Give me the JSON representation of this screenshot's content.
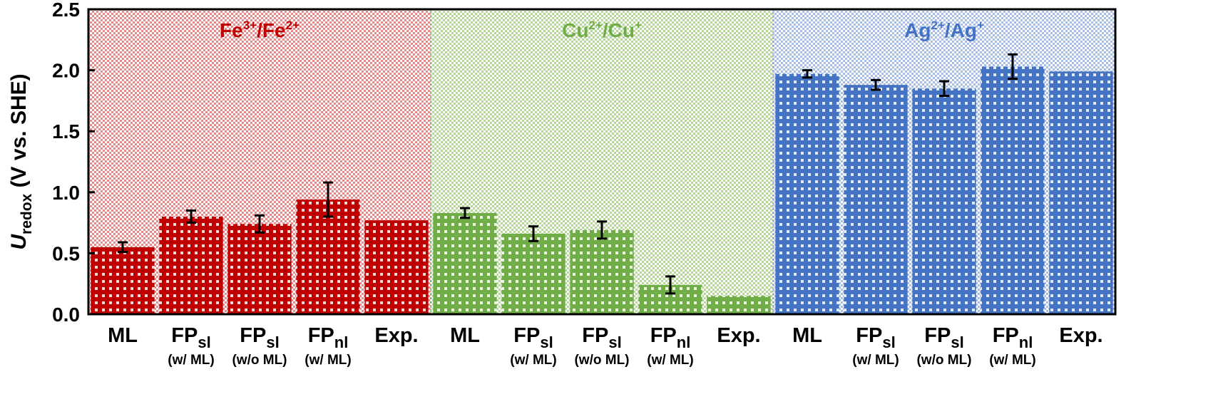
{
  "chart_data": {
    "type": "bar",
    "ylabel": {
      "main": "U",
      "sub": "redox",
      "rest": " (V vs. SHE)"
    },
    "ylim": [
      0,
      2.5
    ],
    "yticks": [
      "0.0",
      "0.5",
      "1.0",
      "1.5",
      "2.0",
      "2.5"
    ],
    "groups": [
      {
        "label_base1": "Fe",
        "label_sup1": "3+",
        "label_mid": "/Fe",
        "label_sup2": "2+",
        "color": "#c00000",
        "bg_color": "#e88a8a",
        "bars": [
          {
            "main": "ML",
            "sub": "",
            "note": "",
            "value": 0.55,
            "err": 0.04
          },
          {
            "main": "FP",
            "sub": "sl",
            "note": "(w/ ML)",
            "value": 0.8,
            "err": 0.05
          },
          {
            "main": "FP",
            "sub": "sl",
            "note": "(w/o ML)",
            "value": 0.74,
            "err": 0.07
          },
          {
            "main": "FP",
            "sub": "nl",
            "note": "(w/ ML)",
            "value": 0.94,
            "err": 0.14
          },
          {
            "main": "Exp.",
            "sub": "",
            "note": "",
            "value": 0.77,
            "err": null
          }
        ]
      },
      {
        "label_base1": "Cu",
        "label_sup1": "2+",
        "label_mid": "/Cu",
        "label_sup2": "+",
        "color": "#70ad47",
        "bg_color": "#b5d89a",
        "bars": [
          {
            "main": "ML",
            "sub": "",
            "note": "",
            "value": 0.83,
            "err": 0.04
          },
          {
            "main": "FP",
            "sub": "sl",
            "note": "(w/ ML)",
            "value": 0.66,
            "err": 0.06
          },
          {
            "main": "FP",
            "sub": "sl",
            "note": "(w/o ML)",
            "value": 0.69,
            "err": 0.07
          },
          {
            "main": "FP",
            "sub": "nl",
            "note": "(w/ ML)",
            "value": 0.24,
            "err": 0.07
          },
          {
            "main": "Exp.",
            "sub": "",
            "note": "",
            "value": 0.15,
            "err": null
          }
        ]
      },
      {
        "label_base1": "Ag",
        "label_sup1": "2+",
        "label_mid": "/Ag",
        "label_sup2": "+",
        "color": "#4472c4",
        "bg_color": "#a6bde6",
        "bars": [
          {
            "main": "ML",
            "sub": "",
            "note": "",
            "value": 1.97,
            "err": 0.03
          },
          {
            "main": "FP",
            "sub": "sl",
            "note": "(w/ ML)",
            "value": 1.88,
            "err": 0.04
          },
          {
            "main": "FP",
            "sub": "sl",
            "note": "(w/o ML)",
            "value": 1.85,
            "err": 0.06
          },
          {
            "main": "FP",
            "sub": "nl",
            "note": "(w/ ML)",
            "value": 2.03,
            "err": 0.1
          },
          {
            "main": "Exp.",
            "sub": "",
            "note": "",
            "value": 1.99,
            "err": null
          }
        ]
      }
    ]
  }
}
